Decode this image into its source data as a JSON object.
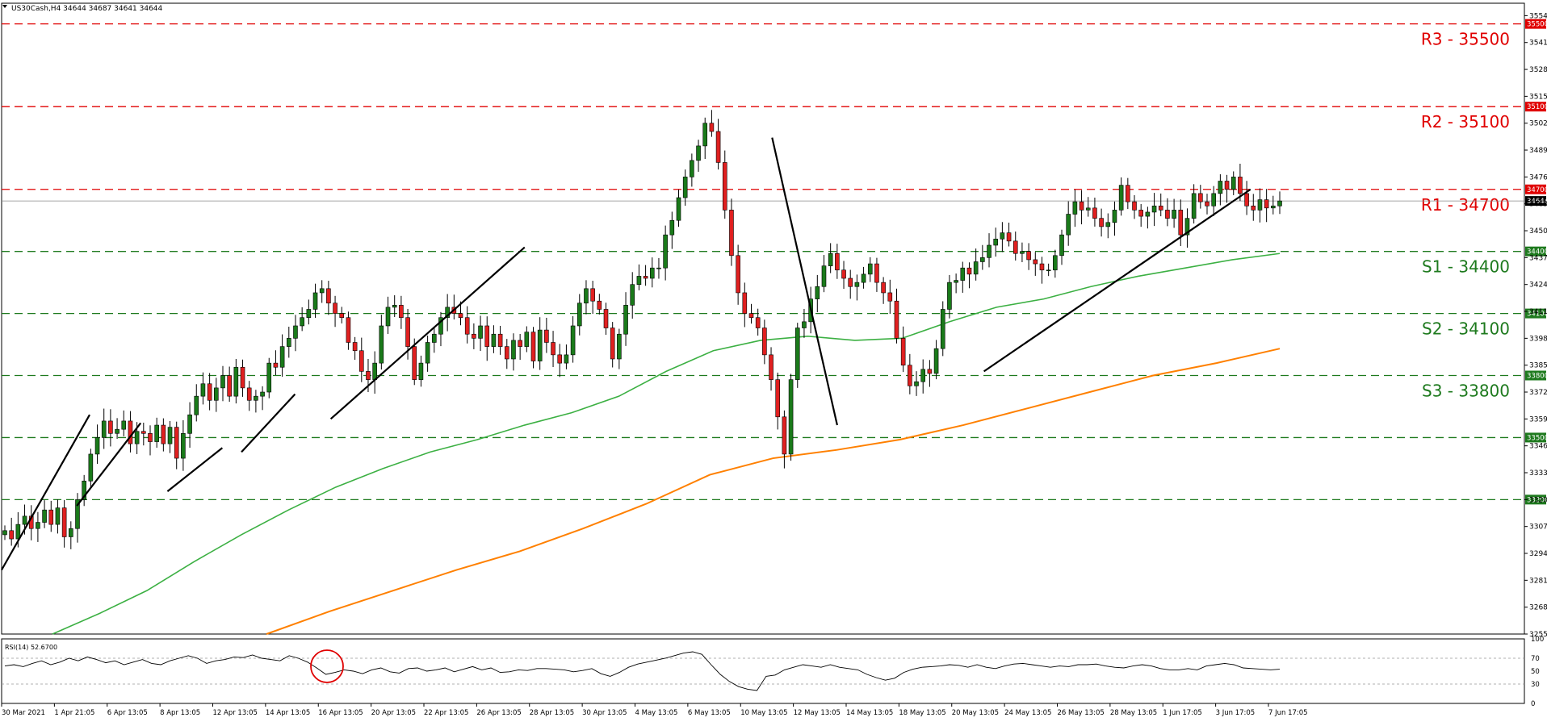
{
  "header": {
    "symbol_info": "US30Cash,H4  34644 34687 34641 34644"
  },
  "chart_data": {
    "type": "candlestick",
    "symbol": "US30Cash",
    "timeframe": "H4",
    "ohlc_readout": {
      "open": 34644,
      "high": 34687,
      "low": 34641,
      "close": 34644
    },
    "current_price": 34644,
    "price_range": [
      32550,
      35600
    ],
    "price_ticks": [
      32550,
      32680,
      32810,
      32940,
      33070,
      33200,
      33330,
      33460,
      33590,
      33720,
      33850,
      33980,
      34110,
      34240,
      34370,
      34500,
      34630,
      34760,
      34890,
      35020,
      35150,
      35280,
      35410,
      35540
    ],
    "levels": [
      {
        "name": "R3",
        "label": "R3 - 35500",
        "value": 35500,
        "tag": "35500",
        "kind": "resistance",
        "color": "#e00000"
      },
      {
        "name": "R2",
        "label": "R2 - 35100",
        "value": 35100,
        "tag": "35100",
        "kind": "resistance",
        "color": "#e00000"
      },
      {
        "name": "R1",
        "label": "R1 - 34700",
        "value": 34700,
        "tag": "34700",
        "kind": "resistance",
        "color": "#e00000"
      },
      {
        "name": "S1",
        "label": "S1 - 34400",
        "value": 34400,
        "tag": "34400",
        "kind": "support",
        "color": "#1e7a1e"
      },
      {
        "name": "S2",
        "label": "S2 - 34100",
        "value": 34100,
        "tag": "34100",
        "kind": "support",
        "color": "#1e7a1e"
      },
      {
        "name": "S3",
        "label": "S3 - 33800",
        "value": 33800,
        "tag": "33800",
        "kind": "support",
        "color": "#1e7a1e"
      },
      {
        "name": "",
        "label": "",
        "value": 33500,
        "tag": "33500",
        "kind": "support",
        "color": "#1e7a1e"
      },
      {
        "name": "",
        "label": "",
        "value": 33200,
        "tag": "33200",
        "kind": "support",
        "color": "#1e7a1e"
      }
    ],
    "x_labels": [
      "30 Mar 2021",
      "1 Apr 21:05",
      "6 Apr 13:05",
      "8 Apr 13:05",
      "12 Apr 13:05",
      "14 Apr 13:05",
      "16 Apr 13:05",
      "20 Apr 13:05",
      "22 Apr 13:05",
      "26 Apr 13:05",
      "28 Apr 13:05",
      "30 Apr 13:05",
      "4 May 13:05",
      "6 May 13:05",
      "10 May 13:05",
      "12 May 13:05",
      "14 May 13:05",
      "18 May 13:05",
      "20 May 13:05",
      "24 May 13:05",
      "26 May 13:05",
      "28 May 13:05",
      "1 Jun 17:05",
      "3 Jun 17:05",
      "7 Jun 17:05"
    ],
    "candles_close": [
      33050,
      33010,
      33080,
      33120,
      33060,
      33090,
      33150,
      33080,
      33160,
      33020,
      33060,
      33200,
      33290,
      33420,
      33500,
      33580,
      33520,
      33540,
      33580,
      33470,
      33530,
      33520,
      33480,
      33560,
      33470,
      33550,
      33400,
      33520,
      33610,
      33700,
      33760,
      33680,
      33740,
      33800,
      33700,
      33840,
      33740,
      33680,
      33700,
      33720,
      33860,
      33840,
      33940,
      33980,
      34040,
      34080,
      34120,
      34200,
      34220,
      34150,
      34100,
      34080,
      33960,
      33920,
      33820,
      33780,
      33860,
      34040,
      34130,
      34140,
      34080,
      33940,
      33780,
      33860,
      33960,
      34000,
      34080,
      34130,
      34100,
      34080,
      34000,
      33980,
      34040,
      33940,
      34000,
      33940,
      33880,
      33970,
      33940,
      34010,
      33870,
      34020,
      33960,
      33900,
      33860,
      33900,
      34040,
      34150,
      34220,
      34160,
      34120,
      34030,
      33880,
      34000,
      34140,
      34240,
      34280,
      34270,
      34320,
      34320,
      34480,
      34550,
      34660,
      34760,
      34840,
      34910,
      35020,
      34980,
      34830,
      34600,
      34380,
      34200,
      34100,
      34080,
      34030,
      33900,
      33780,
      33600,
      33420,
      33780,
      34030,
      34060,
      34170,
      34230,
      34330,
      34390,
      34310,
      34270,
      34230,
      34250,
      34290,
      34340,
      34250,
      34200,
      34160,
      33980,
      33850,
      33750,
      33770,
      33830,
      33810,
      33930,
      34120,
      34250,
      34260,
      34320,
      34290,
      34350,
      34370,
      34430,
      34460,
      34490,
      34450,
      34390,
      34400,
      34360,
      34340,
      34310,
      34310,
      34380,
      34480,
      34580,
      34640,
      34600,
      34610,
      34560,
      34520,
      34540,
      34600,
      34720,
      34640,
      34600,
      34570,
      34590,
      34620,
      34600,
      34560,
      34600,
      34480,
      34560,
      34680,
      34640,
      34620,
      34680,
      34740,
      34700,
      34760,
      34680,
      34620,
      34600,
      34650,
      34610,
      34620,
      34644
    ],
    "moving_averages": [
      {
        "name": "MA green",
        "color": "#3cb043",
        "values": [
          32550,
          32650,
          32760,
          32900,
          33030,
          33150,
          33260,
          33350,
          33430,
          33490,
          33560,
          33620,
          33700,
          33820,
          33920,
          33970,
          33990,
          33970,
          33980,
          34060,
          34130,
          34170,
          34230,
          34280,
          34320,
          34360,
          34390
        ]
      },
      {
        "name": "MA orange",
        "color": "#ff8000",
        "values": [
          32550,
          32660,
          32760,
          32860,
          32950,
          33060,
          33180,
          33320,
          33400,
          33440,
          33490,
          33560,
          33640,
          33720,
          33800,
          33860,
          33930
        ]
      }
    ],
    "trendlines": [
      {
        "from": [
          0,
          32860
        ],
        "to": [
          69,
          33610
        ]
      },
      {
        "from": [
          59,
          33170
        ],
        "to": [
          109,
          33570
        ]
      },
      {
        "from": [
          130,
          33240
        ],
        "to": [
          173,
          33450
        ]
      },
      {
        "from": [
          188,
          33430
        ],
        "to": [
          230,
          33710
        ]
      },
      {
        "from": [
          258,
          33590
        ],
        "to": [
          410,
          34420
        ]
      },
      {
        "from": [
          604,
          34950
        ],
        "to": [
          634,
          34130
        ]
      },
      {
        "from": [
          634,
          34130
        ],
        "to": [
          655,
          33560
        ]
      },
      {
        "from": [
          770,
          33820
        ],
        "to": [
          979,
          34700
        ]
      }
    ],
    "rsi": {
      "label": "RSI(14) 52.6700",
      "value": 52.67,
      "range": [
        0,
        100
      ],
      "ticks": [
        100,
        70,
        50,
        30,
        0
      ],
      "levels": [
        70,
        30
      ],
      "values": [
        58,
        60,
        57,
        62,
        66,
        60,
        64,
        70,
        66,
        72,
        68,
        63,
        66,
        60,
        64,
        68,
        62,
        60,
        66,
        70,
        74,
        70,
        62,
        66,
        68,
        72,
        71,
        75,
        70,
        68,
        66,
        74,
        70,
        64,
        55,
        45,
        48,
        52,
        50,
        46,
        52,
        55,
        49,
        47,
        54,
        55,
        50,
        52,
        55,
        49,
        53,
        57,
        52,
        55,
        48,
        49,
        52,
        51,
        54,
        54,
        53,
        52,
        49,
        51,
        54,
        46,
        42,
        48,
        56,
        61,
        64,
        67,
        70,
        74,
        78,
        80,
        76,
        60,
        45,
        34,
        26,
        22,
        20,
        42,
        44,
        52,
        56,
        60,
        58,
        56,
        60,
        56,
        54,
        52,
        45,
        40,
        36,
        39,
        48,
        53,
        56,
        57,
        58,
        60,
        59,
        56,
        60,
        56,
        54,
        58,
        61,
        62,
        60,
        58,
        56,
        58,
        57,
        60,
        60,
        61,
        58,
        56,
        55,
        58,
        60,
        58,
        54,
        52,
        52,
        54,
        52,
        58,
        60,
        62,
        60,
        55,
        54,
        53,
        52,
        53
      ]
    },
    "annotation": {
      "type": "circle",
      "meaning": "RSI overbought touch near 16 Apr",
      "color": "#e00000"
    }
  }
}
